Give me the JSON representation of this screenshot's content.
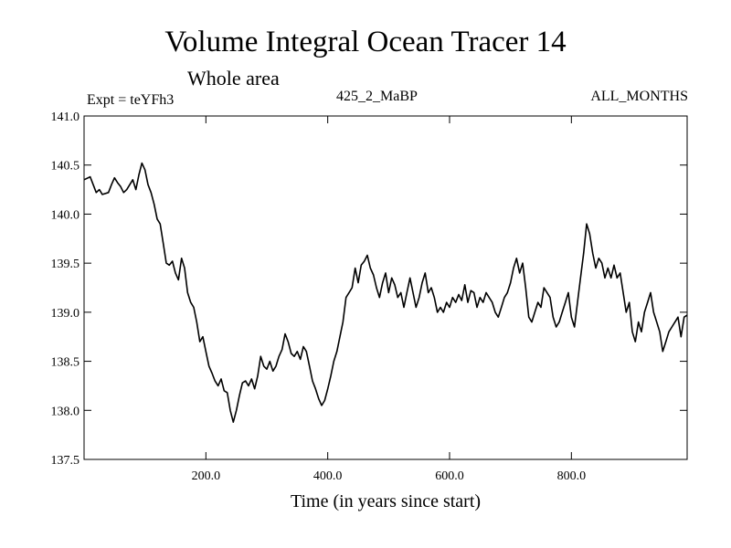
{
  "chart_data": {
    "type": "line",
    "title": "Volume Integral Ocean Tracer 14",
    "subtitle": "Whole area",
    "annotations": {
      "left": "Expt = teYFh3",
      "center": "425_2_MaBP",
      "right": "ALL_MONTHS"
    },
    "xlabel": "Time (in years since start)",
    "ylabel": "",
    "xlim": [
      0,
      990
    ],
    "ylim": [
      137.5,
      141.0
    ],
    "x_ticks": [
      200,
      400,
      600,
      800
    ],
    "x_tick_labels": [
      "200.0",
      "400.0",
      "600.0",
      "800.0"
    ],
    "y_ticks": [
      137.5,
      138.0,
      138.5,
      139.0,
      139.5,
      140.0,
      140.5,
      141.0
    ],
    "y_tick_labels": [
      "137.5",
      "138.0",
      "138.5",
      "139.0",
      "139.5",
      "140.0",
      "140.5",
      "141.0"
    ],
    "grid": false,
    "series": [
      {
        "color": "#000000",
        "points": [
          [
            0,
            140.35
          ],
          [
            10,
            140.38
          ],
          [
            15,
            140.3
          ],
          [
            20,
            140.22
          ],
          [
            25,
            140.25
          ],
          [
            30,
            140.2
          ],
          [
            40,
            140.22
          ],
          [
            45,
            140.3
          ],
          [
            50,
            140.37
          ],
          [
            55,
            140.32
          ],
          [
            60,
            140.28
          ],
          [
            65,
            140.22
          ],
          [
            70,
            140.25
          ],
          [
            75,
            140.3
          ],
          [
            80,
            140.35
          ],
          [
            85,
            140.25
          ],
          [
            90,
            140.4
          ],
          [
            95,
            140.52
          ],
          [
            100,
            140.45
          ],
          [
            105,
            140.3
          ],
          [
            110,
            140.22
          ],
          [
            115,
            140.1
          ],
          [
            120,
            139.95
          ],
          [
            125,
            139.9
          ],
          [
            130,
            139.7
          ],
          [
            135,
            139.5
          ],
          [
            140,
            139.48
          ],
          [
            145,
            139.52
          ],
          [
            150,
            139.4
          ],
          [
            155,
            139.33
          ],
          [
            160,
            139.55
          ],
          [
            165,
            139.45
          ],
          [
            170,
            139.2
          ],
          [
            175,
            139.1
          ],
          [
            180,
            139.05
          ],
          [
            185,
            138.9
          ],
          [
            190,
            138.7
          ],
          [
            195,
            138.75
          ],
          [
            200,
            138.6
          ],
          [
            205,
            138.45
          ],
          [
            210,
            138.38
          ],
          [
            215,
            138.3
          ],
          [
            220,
            138.25
          ],
          [
            225,
            138.32
          ],
          [
            230,
            138.2
          ],
          [
            235,
            138.18
          ],
          [
            240,
            138.0
          ],
          [
            245,
            137.88
          ],
          [
            250,
            138.0
          ],
          [
            255,
            138.15
          ],
          [
            260,
            138.28
          ],
          [
            265,
            138.3
          ],
          [
            270,
            138.25
          ],
          [
            275,
            138.32
          ],
          [
            280,
            138.22
          ],
          [
            285,
            138.35
          ],
          [
            290,
            138.55
          ],
          [
            295,
            138.45
          ],
          [
            300,
            138.42
          ],
          [
            305,
            138.5
          ],
          [
            310,
            138.4
          ],
          [
            315,
            138.45
          ],
          [
            320,
            138.55
          ],
          [
            325,
            138.62
          ],
          [
            330,
            138.78
          ],
          [
            335,
            138.7
          ],
          [
            340,
            138.58
          ],
          [
            345,
            138.55
          ],
          [
            350,
            138.6
          ],
          [
            355,
            138.52
          ],
          [
            360,
            138.65
          ],
          [
            365,
            138.6
          ],
          [
            370,
            138.45
          ],
          [
            375,
            138.3
          ],
          [
            380,
            138.22
          ],
          [
            385,
            138.12
          ],
          [
            390,
            138.05
          ],
          [
            395,
            138.1
          ],
          [
            400,
            138.22
          ],
          [
            405,
            138.35
          ],
          [
            410,
            138.5
          ],
          [
            415,
            138.6
          ],
          [
            420,
            138.75
          ],
          [
            425,
            138.9
          ],
          [
            430,
            139.15
          ],
          [
            435,
            139.2
          ],
          [
            440,
            139.25
          ],
          [
            445,
            139.45
          ],
          [
            450,
            139.3
          ],
          [
            455,
            139.48
          ],
          [
            460,
            139.52
          ],
          [
            465,
            139.58
          ],
          [
            470,
            139.45
          ],
          [
            475,
            139.38
          ],
          [
            480,
            139.25
          ],
          [
            485,
            139.15
          ],
          [
            490,
            139.3
          ],
          [
            495,
            139.4
          ],
          [
            500,
            139.2
          ],
          [
            505,
            139.35
          ],
          [
            510,
            139.28
          ],
          [
            515,
            139.15
          ],
          [
            520,
            139.2
          ],
          [
            525,
            139.05
          ],
          [
            530,
            139.2
          ],
          [
            535,
            139.35
          ],
          [
            540,
            139.2
          ],
          [
            545,
            139.05
          ],
          [
            550,
            139.15
          ],
          [
            555,
            139.3
          ],
          [
            560,
            139.4
          ],
          [
            565,
            139.2
          ],
          [
            570,
            139.25
          ],
          [
            575,
            139.15
          ],
          [
            580,
            139.0
          ],
          [
            585,
            139.05
          ],
          [
            590,
            139.0
          ],
          [
            595,
            139.1
          ],
          [
            600,
            139.05
          ],
          [
            605,
            139.15
          ],
          [
            610,
            139.1
          ],
          [
            615,
            139.18
          ],
          [
            620,
            139.12
          ],
          [
            625,
            139.28
          ],
          [
            630,
            139.1
          ],
          [
            635,
            139.22
          ],
          [
            640,
            139.2
          ],
          [
            645,
            139.05
          ],
          [
            650,
            139.15
          ],
          [
            655,
            139.1
          ],
          [
            660,
            139.2
          ],
          [
            665,
            139.15
          ],
          [
            670,
            139.1
          ],
          [
            675,
            139.0
          ],
          [
            680,
            138.95
          ],
          [
            685,
            139.05
          ],
          [
            690,
            139.15
          ],
          [
            695,
            139.2
          ],
          [
            700,
            139.3
          ],
          [
            705,
            139.45
          ],
          [
            710,
            139.55
          ],
          [
            715,
            139.4
          ],
          [
            720,
            139.5
          ],
          [
            725,
            139.25
          ],
          [
            730,
            138.95
          ],
          [
            735,
            138.9
          ],
          [
            740,
            139.0
          ],
          [
            745,
            139.1
          ],
          [
            750,
            139.05
          ],
          [
            755,
            139.25
          ],
          [
            760,
            139.2
          ],
          [
            765,
            139.15
          ],
          [
            770,
            138.95
          ],
          [
            775,
            138.85
          ],
          [
            780,
            138.9
          ],
          [
            785,
            139.0
          ],
          [
            790,
            139.1
          ],
          [
            795,
            139.2
          ],
          [
            800,
            138.95
          ],
          [
            805,
            138.85
          ],
          [
            810,
            139.1
          ],
          [
            815,
            139.35
          ],
          [
            820,
            139.6
          ],
          [
            825,
            139.9
          ],
          [
            830,
            139.8
          ],
          [
            835,
            139.6
          ],
          [
            840,
            139.45
          ],
          [
            845,
            139.55
          ],
          [
            850,
            139.5
          ],
          [
            855,
            139.35
          ],
          [
            860,
            139.45
          ],
          [
            865,
            139.35
          ],
          [
            870,
            139.48
          ],
          [
            875,
            139.35
          ],
          [
            880,
            139.4
          ],
          [
            885,
            139.2
          ],
          [
            890,
            139.0
          ],
          [
            895,
            139.1
          ],
          [
            900,
            138.8
          ],
          [
            905,
            138.7
          ],
          [
            910,
            138.9
          ],
          [
            915,
            138.8
          ],
          [
            920,
            139.0
          ],
          [
            925,
            139.1
          ],
          [
            930,
            139.2
          ],
          [
            935,
            139.0
          ],
          [
            940,
            138.9
          ],
          [
            945,
            138.8
          ],
          [
            950,
            138.6
          ],
          [
            955,
            138.7
          ],
          [
            960,
            138.8
          ],
          [
            965,
            138.85
          ],
          [
            970,
            138.9
          ],
          [
            975,
            138.95
          ],
          [
            980,
            138.75
          ],
          [
            985,
            138.95
          ],
          [
            990,
            138.97
          ]
        ]
      }
    ]
  }
}
